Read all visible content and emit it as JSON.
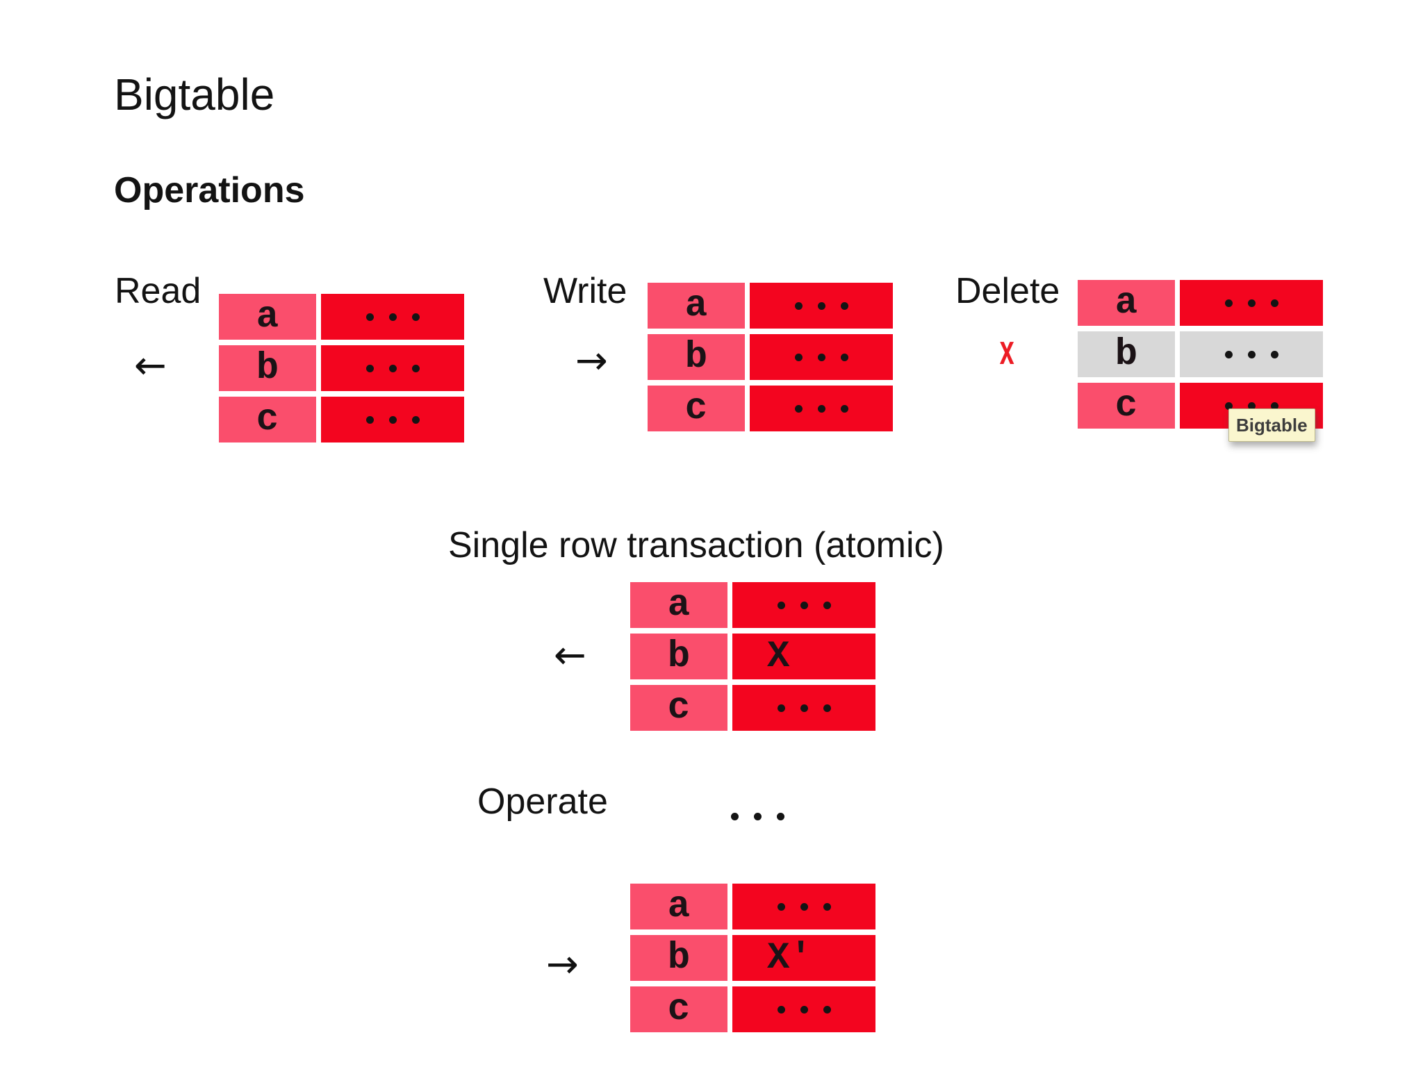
{
  "slide": {
    "title": "Bigtable",
    "subtitle": "Operations"
  },
  "colors": {
    "pink": "#FA4E6C",
    "red": "#F3051F",
    "gray": "#D8D8D8",
    "ink": "#1B1216",
    "dot": "#141414",
    "delete_x": "#EC1C24",
    "tooltip_bg": "#FAF6CE",
    "tooltip_border": "#BDB98F",
    "tooltip_text": "#3D3D3D"
  },
  "sections": {
    "read": {
      "label": "Read",
      "arrow": "←"
    },
    "write": {
      "label": "Write",
      "arrow": "→"
    },
    "delete": {
      "label": "Delete",
      "delete_marker": "x",
      "tooltip": "Bigtable"
    },
    "transaction": {
      "heading": "Single row transaction (atomic)",
      "arrow": "←"
    },
    "operate": {
      "label": "Operate",
      "arrow": "→"
    }
  },
  "tables": {
    "read": {
      "rows": [
        {
          "key": "a",
          "value": "..."
        },
        {
          "key": "b",
          "value": "..."
        },
        {
          "key": "c",
          "value": "..."
        }
      ],
      "gray_rows": []
    },
    "write": {
      "rows": [
        {
          "key": "a",
          "value": "..."
        },
        {
          "key": "b",
          "value": "..."
        },
        {
          "key": "c",
          "value": "..."
        }
      ],
      "gray_rows": []
    },
    "delete": {
      "rows": [
        {
          "key": "a",
          "value": "..."
        },
        {
          "key": "b",
          "value": "..."
        },
        {
          "key": "c",
          "value": "..."
        }
      ],
      "gray_rows": [
        1
      ]
    },
    "transaction": {
      "rows": [
        {
          "key": "a",
          "value": "..."
        },
        {
          "key": "b",
          "value": "X"
        },
        {
          "key": "c",
          "value": "..."
        }
      ],
      "gray_rows": []
    },
    "operate": {
      "rows": [
        {
          "key": "a",
          "value": "..."
        },
        {
          "key": "b",
          "value": "X'"
        },
        {
          "key": "c",
          "value": "..."
        }
      ],
      "gray_rows": []
    }
  }
}
